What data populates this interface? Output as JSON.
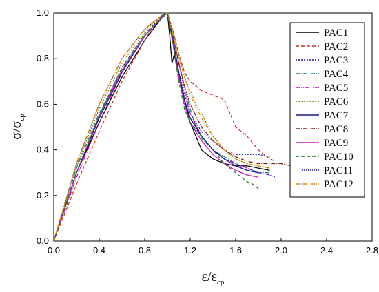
{
  "chart_data": {
    "type": "line",
    "xlabel": {
      "main": "ε/ε",
      "sub": "cp"
    },
    "ylabel": {
      "main": "σ/σ",
      "sub": "cp"
    },
    "xlim": [
      0.0,
      2.8
    ],
    "ylim": [
      0.0,
      1.0
    ],
    "x_ticks": [
      "0.0",
      "0.4",
      "0.8",
      "1.2",
      "1.6",
      "2.0",
      "2.4",
      "2.8"
    ],
    "y_ticks": [
      "0.0",
      "0.2",
      "0.4",
      "0.6",
      "0.8",
      "1.0"
    ],
    "grid": false,
    "legend_position": "top-right",
    "series": [
      {
        "name": "PAC1",
        "color": "#000000",
        "dash": "solid",
        "x": [
          0,
          0.2,
          0.4,
          0.6,
          0.8,
          0.95,
          1.0,
          1.02,
          1.04,
          1.06,
          1.1,
          1.15,
          1.2,
          1.25,
          1.3,
          1.35,
          1.4,
          1.5,
          1.6,
          1.7,
          1.8,
          1.9
        ],
        "y": [
          0,
          0.3,
          0.52,
          0.72,
          0.88,
          0.98,
          1.0,
          0.9,
          0.78,
          0.82,
          0.72,
          0.62,
          0.52,
          0.46,
          0.4,
          0.38,
          0.36,
          0.34,
          0.33,
          0.33,
          0.32,
          0.31
        ]
      },
      {
        "name": "PAC2",
        "color": "#c0392b",
        "dash": "5,3",
        "x": [
          0,
          0.2,
          0.4,
          0.6,
          0.8,
          0.92,
          1.0,
          1.05,
          1.1,
          1.15,
          1.2,
          1.3,
          1.4,
          1.5,
          1.55,
          1.6,
          1.65,
          1.7,
          1.8,
          1.9,
          1.95
        ],
        "y": [
          0,
          0.25,
          0.48,
          0.7,
          0.88,
          0.98,
          1.0,
          0.92,
          0.82,
          0.74,
          0.7,
          0.66,
          0.64,
          0.62,
          0.56,
          0.5,
          0.48,
          0.46,
          0.4,
          0.36,
          0.35
        ]
      },
      {
        "name": "PAC3",
        "color": "#1a1aa6",
        "dash": "2,2",
        "x": [
          0,
          0.2,
          0.4,
          0.6,
          0.8,
          0.94,
          1.0,
          1.05,
          1.1,
          1.15,
          1.2,
          1.3,
          1.4,
          1.5,
          1.6,
          1.7,
          1.8,
          1.9
        ],
        "y": [
          0,
          0.3,
          0.55,
          0.75,
          0.9,
          0.98,
          1.0,
          0.88,
          0.74,
          0.64,
          0.56,
          0.48,
          0.44,
          0.4,
          0.38,
          0.38,
          0.38,
          0.37
        ]
      },
      {
        "name": "PAC4",
        "color": "#1f7f7f",
        "dash": "6,2,1,2",
        "x": [
          0,
          0.2,
          0.4,
          0.6,
          0.8,
          0.95,
          1.0,
          1.05,
          1.1,
          1.15,
          1.2,
          1.25,
          1.3,
          1.4,
          1.5,
          1.6,
          1.7,
          1.8,
          1.9
        ],
        "y": [
          0,
          0.32,
          0.56,
          0.76,
          0.9,
          0.98,
          1.0,
          0.9,
          0.78,
          0.68,
          0.58,
          0.5,
          0.45,
          0.4,
          0.37,
          0.34,
          0.32,
          0.3,
          0.3
        ]
      },
      {
        "name": "PAC5",
        "color": "#cc00cc",
        "dash": "6,2,1,2,1,2",
        "x": [
          0,
          0.2,
          0.4,
          0.6,
          0.8,
          0.95,
          1.0,
          1.05,
          1.1,
          1.15,
          1.2,
          1.3,
          1.4,
          1.5,
          1.6,
          1.7,
          1.8,
          1.9
        ],
        "y": [
          0,
          0.28,
          0.52,
          0.74,
          0.9,
          0.98,
          1.0,
          0.9,
          0.78,
          0.66,
          0.56,
          0.46,
          0.4,
          0.36,
          0.34,
          0.32,
          0.3,
          0.29
        ]
      },
      {
        "name": "PAC6",
        "color": "#808000",
        "dash": "2,2",
        "x": [
          0,
          0.2,
          0.4,
          0.6,
          0.8,
          0.95,
          1.0,
          1.05,
          1.1,
          1.15,
          1.2,
          1.25,
          1.3,
          1.4,
          1.5,
          1.6,
          1.7,
          1.8,
          1.9
        ],
        "y": [
          0,
          0.33,
          0.58,
          0.78,
          0.92,
          0.99,
          1.0,
          0.92,
          0.82,
          0.72,
          0.66,
          0.6,
          0.56,
          0.46,
          0.4,
          0.36,
          0.34,
          0.33,
          0.32
        ]
      },
      {
        "name": "PAC7",
        "color": "#1a1a7a",
        "dash": "solid",
        "x": [
          0,
          0.2,
          0.4,
          0.6,
          0.8,
          0.95,
          1.0,
          1.05,
          1.1,
          1.15,
          1.2,
          1.3,
          1.4,
          1.5,
          1.6,
          1.7,
          1.8
        ],
        "y": [
          0,
          0.3,
          0.54,
          0.74,
          0.9,
          0.98,
          1.0,
          0.88,
          0.74,
          0.62,
          0.54,
          0.46,
          0.4,
          0.36,
          0.33,
          0.31,
          0.3
        ]
      },
      {
        "name": "PAC8",
        "color": "#7a1f1f",
        "dash": "6,2,1,2",
        "x": [
          0,
          0.2,
          0.4,
          0.6,
          0.8,
          0.95,
          1.0,
          1.05,
          1.1,
          1.15,
          1.2,
          1.3,
          1.4,
          1.5,
          1.6,
          1.7,
          1.8,
          1.9,
          2.0,
          2.09
        ],
        "y": [
          0,
          0.34,
          0.6,
          0.8,
          0.93,
          0.99,
          1.0,
          0.9,
          0.78,
          0.68,
          0.6,
          0.5,
          0.44,
          0.4,
          0.37,
          0.35,
          0.34,
          0.34,
          0.34,
          0.33
        ]
      },
      {
        "name": "PAC9",
        "color": "#c41ec4",
        "dash": "solid",
        "x": [
          0,
          0.2,
          0.4,
          0.6,
          0.8,
          0.95,
          1.0,
          1.05,
          1.1,
          1.15,
          1.2,
          1.3,
          1.4,
          1.5,
          1.6,
          1.7,
          1.8
        ],
        "y": [
          0,
          0.3,
          0.55,
          0.75,
          0.9,
          0.98,
          1.0,
          0.86,
          0.72,
          0.6,
          0.52,
          0.44,
          0.38,
          0.34,
          0.31,
          0.29,
          0.28
        ]
      },
      {
        "name": "PAC10",
        "color": "#1e7a1e",
        "dash": "5,3",
        "x": [
          0,
          0.2,
          0.4,
          0.6,
          0.8,
          0.95,
          1.0,
          1.05,
          1.1,
          1.15,
          1.2,
          1.3,
          1.4,
          1.5,
          1.6,
          1.7,
          1.75,
          1.8
        ],
        "y": [
          0,
          0.3,
          0.55,
          0.76,
          0.91,
          0.98,
          1.0,
          0.86,
          0.7,
          0.58,
          0.52,
          0.46,
          0.4,
          0.34,
          0.3,
          0.26,
          0.25,
          0.23
        ]
      },
      {
        "name": "PAC11",
        "color": "#1a1ab0",
        "dash": "1,2",
        "x": [
          0,
          0.2,
          0.4,
          0.6,
          0.8,
          0.95,
          1.0,
          1.05,
          1.1,
          1.15,
          1.2,
          1.3,
          1.4,
          1.5,
          1.6,
          1.7,
          1.8,
          1.9,
          1.95
        ],
        "y": [
          0,
          0.34,
          0.6,
          0.8,
          0.93,
          0.99,
          1.0,
          0.88,
          0.74,
          0.62,
          0.54,
          0.46,
          0.4,
          0.36,
          0.33,
          0.31,
          0.3,
          0.29,
          0.28
        ]
      },
      {
        "name": "PAC12",
        "color": "#e08a00",
        "dash": "6,2,1,2",
        "x": [
          0,
          0.2,
          0.4,
          0.6,
          0.8,
          0.95,
          1.0,
          1.05,
          1.1,
          1.15,
          1.2,
          1.3,
          1.4,
          1.5,
          1.6,
          1.7,
          1.8,
          1.9
        ],
        "y": [
          0,
          0.34,
          0.6,
          0.8,
          0.93,
          0.99,
          1.0,
          0.9,
          0.8,
          0.72,
          0.64,
          0.54,
          0.46,
          0.4,
          0.36,
          0.34,
          0.33,
          0.32
        ]
      }
    ]
  }
}
